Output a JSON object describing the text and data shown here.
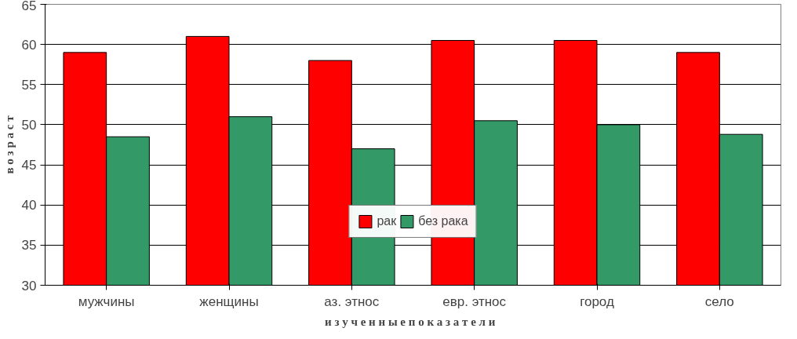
{
  "chart_data": {
    "type": "bar",
    "xlabel": "и з у ч е н н ы е   п о к а з а т е л и",
    "ylabel": "в о з р а с т",
    "categories": [
      "мужчины",
      "женщины",
      "аз. этнос",
      "евр. этнос",
      "город",
      "село"
    ],
    "series": [
      {
        "name": "рак",
        "color": "#ff0000",
        "values": [
          59,
          61,
          58,
          60.5,
          60.5,
          59
        ]
      },
      {
        "name": "без рака",
        "color": "#339966",
        "values": [
          48.5,
          51,
          47,
          50.5,
          50,
          48.8
        ]
      }
    ],
    "ylim": [
      30,
      65
    ],
    "yticks": [
      30,
      35,
      40,
      45,
      50,
      55,
      60,
      65
    ],
    "grid": "y",
    "legend": "bottom"
  }
}
